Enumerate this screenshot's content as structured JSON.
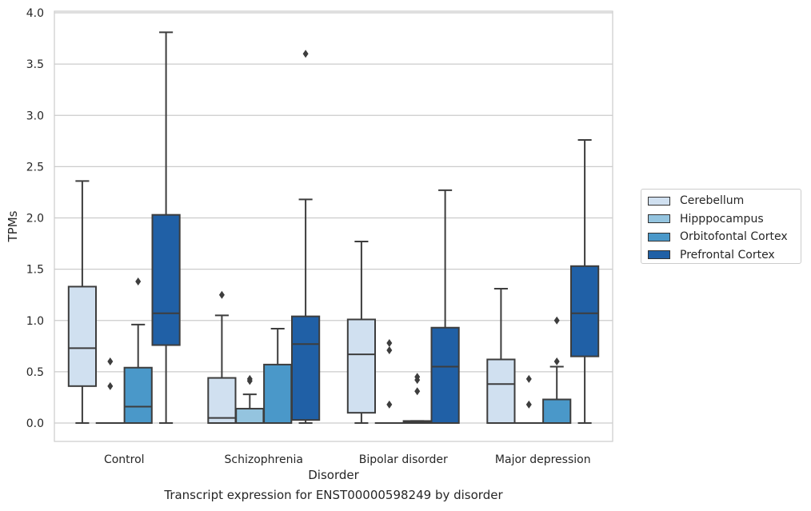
{
  "caption": "Transcript expression for ENST00000598249 by disorder",
  "colors": {
    "Cerebellum": "#d0e0f0",
    "Hipppocampus": "#94c4df",
    "Orbitofontal Cortex": "#4a98c9",
    "Prefrontal Cortex": "#2060a6"
  },
  "chart_data": {
    "type": "box",
    "title": "",
    "xlabel": "Disorder",
    "ylabel": "TPMs",
    "ylim": [
      -0.18,
      4.02
    ],
    "yticks": [
      0.0,
      0.5,
      1.0,
      1.5,
      2.0,
      2.5,
      3.0,
      3.5,
      4.0
    ],
    "ytick_labels": [
      "0.0",
      "0.5",
      "1.0",
      "1.5",
      "2.0",
      "2.5",
      "3.0",
      "3.5",
      "4.0"
    ],
    "grid": "horizontal",
    "legend_position": "right",
    "categories": [
      "Control",
      "Schizophrenia",
      "Bipolar disorder",
      "Major depression"
    ],
    "series": [
      {
        "name": "Cerebellum",
        "boxes": [
          {
            "whislo": 0.0,
            "q1": 0.36,
            "med": 0.73,
            "q3": 1.33,
            "whishi": 2.36,
            "fliers": []
          },
          {
            "whislo": 0.0,
            "q1": 0.0,
            "med": 0.05,
            "q3": 0.44,
            "whishi": 1.05,
            "fliers": [
              1.25
            ]
          },
          {
            "whislo": 0.0,
            "q1": 0.1,
            "med": 0.67,
            "q3": 1.01,
            "whishi": 1.77,
            "fliers": []
          },
          {
            "whislo": 0.0,
            "q1": 0.0,
            "med": 0.38,
            "q3": 0.62,
            "whishi": 1.31,
            "fliers": []
          }
        ]
      },
      {
        "name": "Hipppocampus",
        "boxes": [
          {
            "whislo": 0.0,
            "q1": 0.0,
            "med": 0.0,
            "q3": 0.0,
            "whishi": 0.0,
            "fliers": [
              0.36,
              0.6
            ]
          },
          {
            "whislo": 0.0,
            "q1": 0.0,
            "med": 0.0,
            "q3": 0.14,
            "whishi": 0.28,
            "fliers": [
              0.41,
              0.43
            ]
          },
          {
            "whislo": 0.0,
            "q1": 0.0,
            "med": 0.0,
            "q3": 0.0,
            "whishi": 0.0,
            "fliers": [
              0.18,
              0.71,
              0.78
            ]
          },
          {
            "whislo": 0.0,
            "q1": 0.0,
            "med": 0.0,
            "q3": 0.0,
            "whishi": 0.0,
            "fliers": [
              0.18,
              0.43
            ]
          }
        ]
      },
      {
        "name": "Orbitofontal Cortex",
        "boxes": [
          {
            "whislo": 0.0,
            "q1": 0.0,
            "med": 0.16,
            "q3": 0.54,
            "whishi": 0.96,
            "fliers": [
              1.38
            ]
          },
          {
            "whislo": 0.0,
            "q1": 0.0,
            "med": 0.0,
            "q3": 0.57,
            "whishi": 0.92,
            "fliers": []
          },
          {
            "whislo": 0.0,
            "q1": 0.0,
            "med": 0.01,
            "q3": 0.02,
            "whishi": 0.02,
            "fliers": [
              0.31,
              0.42,
              0.45
            ]
          },
          {
            "whislo": 0.0,
            "q1": 0.0,
            "med": 0.0,
            "q3": 0.23,
            "whishi": 0.55,
            "fliers": [
              0.6,
              1.0
            ]
          }
        ]
      },
      {
        "name": "Prefrontal Cortex",
        "boxes": [
          {
            "whislo": 0.0,
            "q1": 0.76,
            "med": 1.07,
            "q3": 2.03,
            "whishi": 3.81,
            "fliers": []
          },
          {
            "whislo": 0.0,
            "q1": 0.03,
            "med": 0.77,
            "q3": 1.04,
            "whishi": 2.18,
            "fliers": [
              3.6
            ]
          },
          {
            "whislo": 0.0,
            "q1": 0.0,
            "med": 0.55,
            "q3": 0.93,
            "whishi": 2.27,
            "fliers": []
          },
          {
            "whislo": 0.0,
            "q1": 0.65,
            "med": 1.07,
            "q3": 1.53,
            "whishi": 2.76,
            "fliers": []
          }
        ]
      }
    ]
  }
}
